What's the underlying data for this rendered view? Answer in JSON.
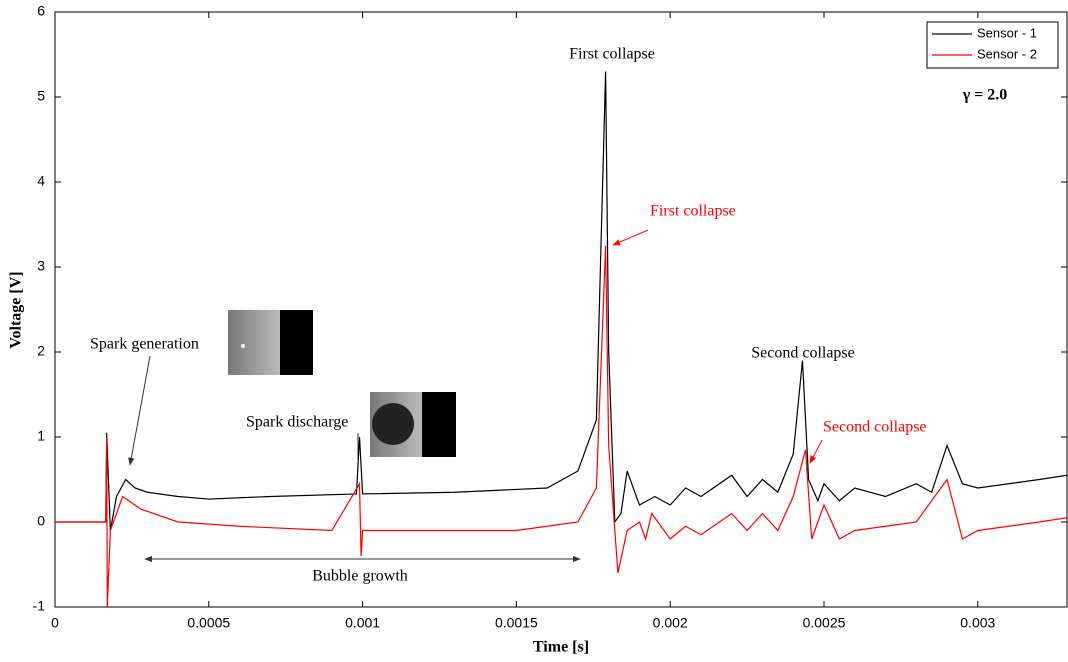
{
  "chart_data": {
    "type": "line",
    "xlabel": "Time [s]",
    "ylabel": "Voltage [V]",
    "xlim": [
      0,
      0.00329
    ],
    "ylim": [
      -1,
      6
    ],
    "xticks": [
      0,
      0.0005,
      0.001,
      0.0015,
      0.002,
      0.0025,
      0.003
    ],
    "yticks": [
      -1,
      0,
      1,
      2,
      3,
      4,
      5,
      6
    ],
    "legend": "upper right",
    "series": [
      {
        "name": "Sensor - 1",
        "color": "#000000",
        "x": [
          0,
          0.000165,
          0.000168,
          0.00018,
          0.0002,
          0.00023,
          0.00026,
          0.0003,
          0.0004,
          0.0005,
          0.0007,
          0.00098,
          0.00099,
          0.001,
          0.0013,
          0.0016,
          0.0017,
          0.00176,
          0.00179,
          0.0018,
          0.00182,
          0.00184,
          0.00186,
          0.0019,
          0.00195,
          0.002,
          0.00205,
          0.0021,
          0.0022,
          0.00225,
          0.0023,
          0.00235,
          0.0024,
          0.00243,
          0.00245,
          0.00248,
          0.0025,
          0.00255,
          0.0026,
          0.0027,
          0.0028,
          0.00285,
          0.0029,
          0.00295,
          0.003,
          0.0031,
          0.0032,
          0.00329
        ],
        "values": [
          0,
          0,
          1.05,
          -0.1,
          0.3,
          0.5,
          0.4,
          0.35,
          0.3,
          0.27,
          0.3,
          0.33,
          1.0,
          0.33,
          0.35,
          0.4,
          0.6,
          1.2,
          5.3,
          2.0,
          0,
          0.1,
          0.6,
          0.2,
          0.3,
          0.2,
          0.4,
          0.3,
          0.55,
          0.3,
          0.5,
          0.35,
          0.8,
          1.9,
          0.5,
          0.25,
          0.45,
          0.25,
          0.4,
          0.3,
          0.45,
          0.35,
          0.9,
          0.45,
          0.4,
          0.45,
          0.5,
          0.55
        ]
      },
      {
        "name": "Sensor - 2",
        "color": "#ff0000",
        "x": [
          0,
          0.000165,
          0.000168,
          0.00017,
          0.00018,
          0.00022,
          0.00028,
          0.0004,
          0.0006,
          0.0009,
          0.00099,
          0.000995,
          0.001,
          0.0012,
          0.0015,
          0.0017,
          0.00176,
          0.00179,
          0.0018,
          0.00183,
          0.00186,
          0.0019,
          0.00192,
          0.00194,
          0.002,
          0.00205,
          0.0021,
          0.0022,
          0.00225,
          0.0023,
          0.00235,
          0.0024,
          0.00244,
          0.00246,
          0.0025,
          0.00255,
          0.0026,
          0.0027,
          0.0028,
          0.0029,
          0.00295,
          0.003,
          0.0031,
          0.0032,
          0.00329
        ],
        "values": [
          0,
          0,
          1.0,
          -1.0,
          -0.1,
          0.3,
          0.15,
          0.0,
          -0.05,
          -0.1,
          0.45,
          -0.4,
          -0.1,
          -0.1,
          -0.1,
          0,
          0.4,
          3.25,
          0.9,
          -0.6,
          -0.1,
          0,
          -0.2,
          0.1,
          -0.2,
          -0.05,
          -0.15,
          0.1,
          -0.1,
          0.1,
          -0.1,
          0.3,
          0.85,
          -0.2,
          0.2,
          -0.2,
          -0.1,
          -0.05,
          0,
          0.5,
          -0.2,
          -0.1,
          -0.05,
          0,
          0.05
        ]
      }
    ],
    "annotations": [
      {
        "text": "First collapse",
        "color": "#000000"
      },
      {
        "text": "First collapse",
        "color": "#ff0000"
      },
      {
        "text": "Second collapse",
        "color": "#000000"
      },
      {
        "text": "Second collapse",
        "color": "#ff0000"
      },
      {
        "text": "Spark generation",
        "color": "#000000"
      },
      {
        "text": "Spark discharge",
        "color": "#000000"
      },
      {
        "text": "Bubble growth",
        "color": "#000000"
      },
      {
        "text": "γ = 2.0",
        "color": "#000000"
      }
    ]
  }
}
